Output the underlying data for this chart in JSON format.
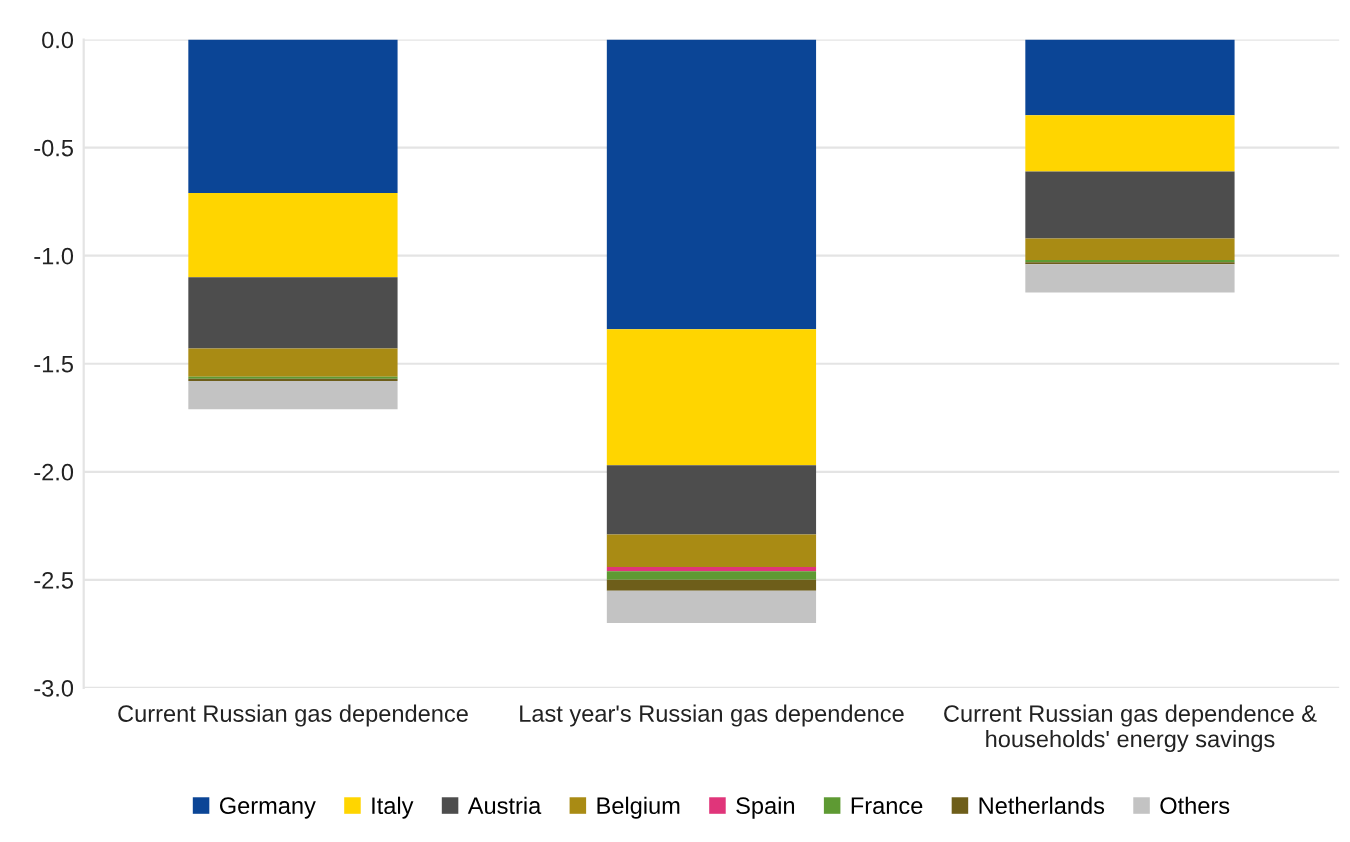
{
  "chart_data": {
    "type": "bar",
    "stacked": true,
    "categories": [
      "Current Russian gas dependence",
      "Last year's Russian gas dependence",
      "Current Russian gas dependence & households' energy savings"
    ],
    "series": [
      {
        "name": "Germany",
        "color": "#0b4596",
        "values": [
          -0.71,
          -1.34,
          -0.35
        ]
      },
      {
        "name": "Italy",
        "color": "#ffd500",
        "values": [
          -0.39,
          -0.63,
          -0.26
        ]
      },
      {
        "name": "Austria",
        "color": "#4d4d4d",
        "values": [
          -0.33,
          -0.32,
          -0.31
        ]
      },
      {
        "name": "Belgium",
        "color": "#a98b14",
        "values": [
          -0.13,
          -0.15,
          -0.1
        ]
      },
      {
        "name": "Spain",
        "color": "#e0357a",
        "values": [
          0,
          -0.02,
          0
        ]
      },
      {
        "name": "France",
        "color": "#5e9a33",
        "values": [
          -0.01,
          -0.04,
          -0.01
        ]
      },
      {
        "name": "Netherlands",
        "color": "#6e5e1a",
        "values": [
          -0.01,
          -0.05,
          -0.01
        ]
      },
      {
        "name": "Others",
        "color": "#c3c3c3",
        "values": [
          -0.13,
          -0.15,
          -0.13
        ]
      }
    ],
    "ylim": [
      -3.0,
      0.0
    ],
    "yticks": [
      {
        "value": 0.0,
        "label": "0.0"
      },
      {
        "value": -0.5,
        "label": "-0.5"
      },
      {
        "value": -1.0,
        "label": "-1.0"
      },
      {
        "value": -1.5,
        "label": "-1.5"
      },
      {
        "value": -2.0,
        "label": "-2.0"
      },
      {
        "value": -2.5,
        "label": "-2.5"
      },
      {
        "value": -3.0,
        "label": "-3.0"
      }
    ],
    "grid": "y",
    "legend": "bottom"
  }
}
